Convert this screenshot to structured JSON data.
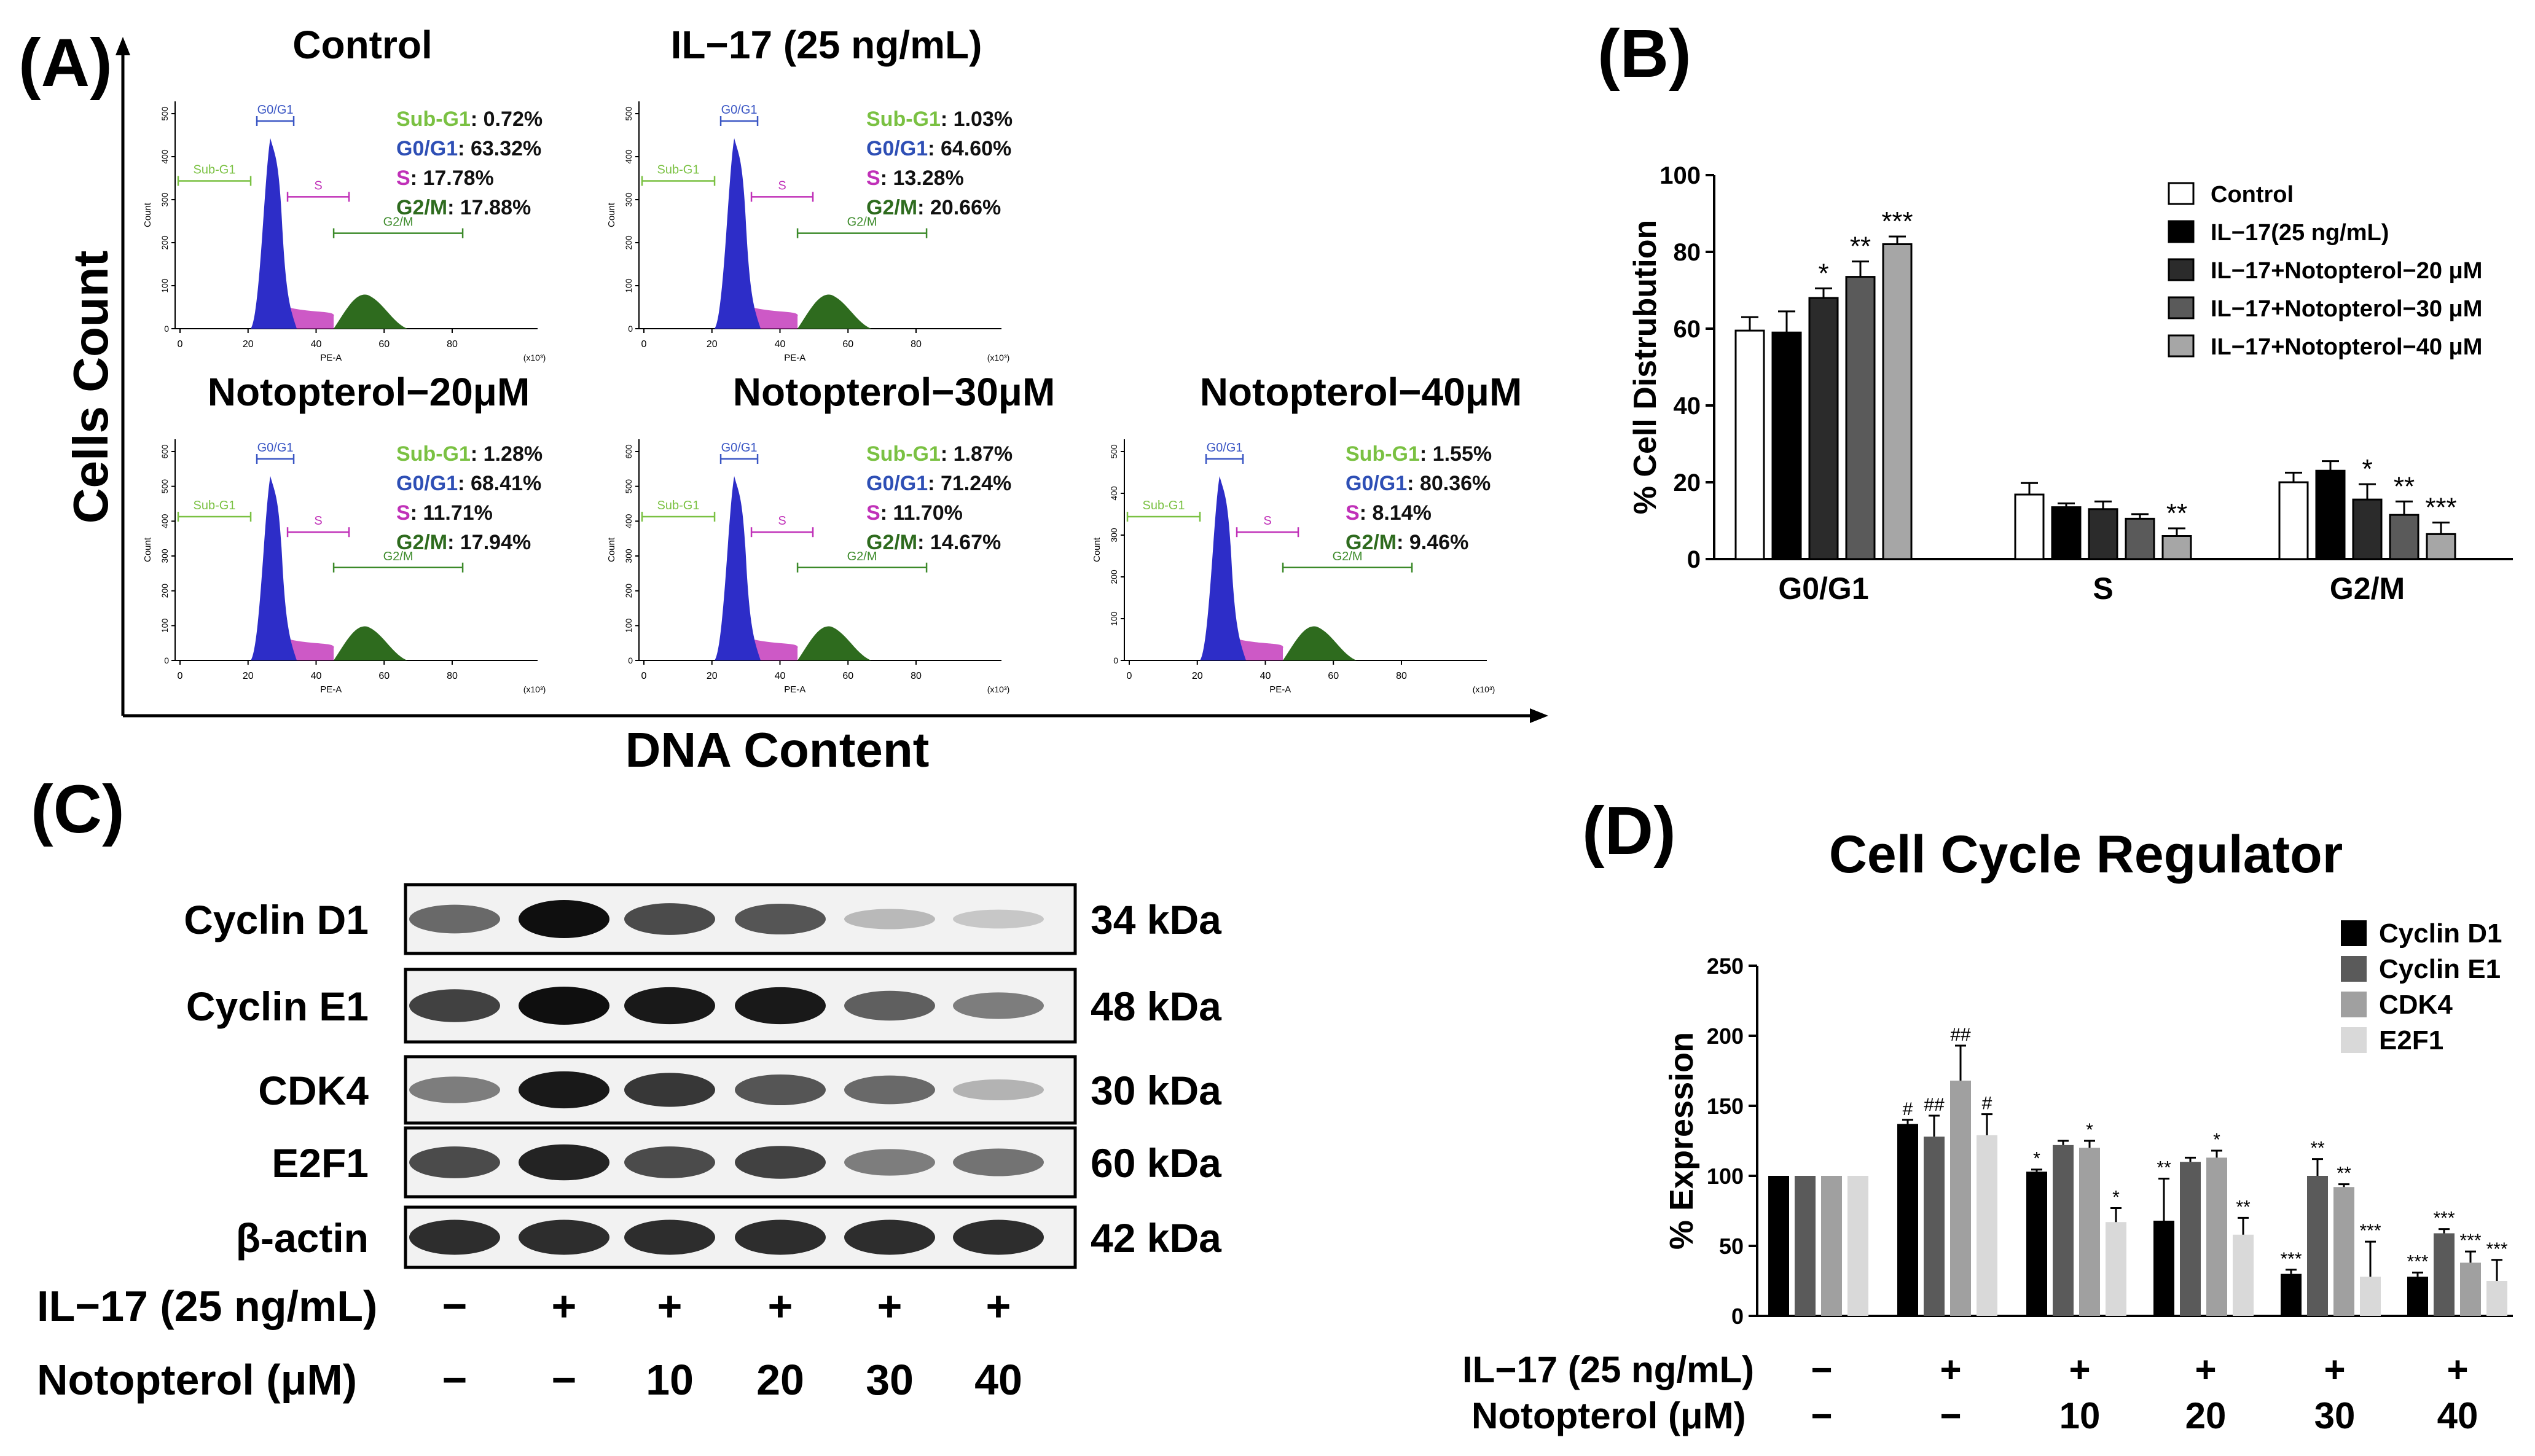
{
  "panels": {
    "A": "(A)",
    "B": "(B)",
    "C": "(C)",
    "D": "(D)"
  },
  "panel_a": {
    "y_axis_title": "Cells Count",
    "x_axis_title": "DNA Content",
    "hist_x_label": "PE-A",
    "hist_y_label": "Count",
    "x_multiplier": "(x10³)",
    "gate_labels": [
      "Sub-G1",
      "G0/G1",
      "S",
      "G2/M"
    ],
    "stat_labels": [
      "Sub-G1",
      "G0/G1",
      "S",
      "G2/M"
    ],
    "colors": {
      "sub_g1": "#7ac142",
      "g0g1": "#2e4fb5",
      "s": "#c030b8",
      "g2m": "#2e6b1e",
      "peak": "#2d2dc8"
    },
    "histograms": [
      {
        "title": "Control",
        "stats": [
          ": 0.72%",
          ": 63.32%",
          ": 17.78%",
          ": 17.88%"
        ],
        "y_ticks": [
          "0",
          "100",
          "200",
          "300",
          "400",
          "500"
        ],
        "x_ticks": [
          "0",
          "20",
          "40",
          "60",
          "80"
        ]
      },
      {
        "title": "IL−17 (25 ng/mL)",
        "stats": [
          ": 1.03%",
          ": 64.60%",
          ": 13.28%",
          ": 20.66%"
        ],
        "y_ticks": [
          "0",
          "100",
          "200",
          "300",
          "400",
          "500"
        ],
        "x_ticks": [
          "0",
          "20",
          "40",
          "60",
          "80"
        ]
      },
      {
        "title": "Notopterol−20μM",
        "stats": [
          ": 1.28%",
          ": 68.41%",
          ": 11.71%",
          ": 17.94%"
        ],
        "y_ticks": [
          "0",
          "100",
          "200",
          "300",
          "400",
          "500",
          "600"
        ],
        "x_ticks": [
          "0",
          "20",
          "40",
          "60",
          "80"
        ]
      },
      {
        "title": "Notopterol−30μM",
        "stats": [
          ": 1.87%",
          ": 71.24%",
          ": 11.70%",
          ": 14.67%"
        ],
        "y_ticks": [
          "0",
          "100",
          "200",
          "300",
          "400",
          "500",
          "600"
        ],
        "x_ticks": [
          "0",
          "20",
          "40",
          "60",
          "80"
        ]
      },
      {
        "title": "Notopterol−40μM",
        "stats": [
          ": 1.55%",
          ": 80.36%",
          ": 8.14%",
          ": 9.46%"
        ],
        "y_ticks": [
          "0",
          "100",
          "200",
          "300",
          "400",
          "500"
        ],
        "x_ticks": [
          "0",
          "20",
          "40",
          "60",
          "80"
        ]
      }
    ]
  },
  "panel_c": {
    "proteins": [
      {
        "name": "Cyclin D1",
        "size": "34 kDa",
        "intensity": [
          0.55,
          1.0,
          0.7,
          0.65,
          0.15,
          0.08
        ]
      },
      {
        "name": "Cyclin E1",
        "size": "48 kDa",
        "intensity": [
          0.75,
          1.0,
          0.95,
          0.95,
          0.6,
          0.45
        ]
      },
      {
        "name": "CDK4",
        "size": "30 kDa",
        "intensity": [
          0.45,
          0.95,
          0.8,
          0.65,
          0.55,
          0.18
        ]
      },
      {
        "name": "E2F1",
        "size": "60 kDa",
        "intensity": [
          0.7,
          0.9,
          0.7,
          0.75,
          0.45,
          0.5
        ]
      },
      {
        "name": "β-actin",
        "size": "42 kDa",
        "intensity": [
          0.85,
          0.85,
          0.85,
          0.85,
          0.85,
          0.85
        ]
      }
    ],
    "il17_label": "IL−17 (25 ng/mL)",
    "il17_values": [
      "−",
      "+",
      "+",
      "+",
      "+",
      "+"
    ],
    "notopterol_label": "Notopterol (μM)",
    "notopterol_values": [
      "−",
      "−",
      "10",
      "20",
      "30",
      "40"
    ]
  },
  "chart_data": [
    {
      "type": "bar",
      "panel": "B",
      "categories": [
        "G0/G1",
        "S",
        "G2/M"
      ],
      "ylabel": "% Cell Distrubution",
      "ylim": [
        0,
        100
      ],
      "yticks": [
        "0",
        "20",
        "40",
        "60",
        "80",
        "100"
      ],
      "legend_position": "top-right",
      "series": [
        {
          "name": "Control",
          "color": "#ffffff",
          "values": [
            59.5,
            16.8,
            20
          ],
          "errors": [
            3.5,
            3,
            2.5
          ],
          "stars": [
            "",
            "",
            ""
          ]
        },
        {
          "name": "IL−17(25 ng/mL)",
          "color": "#000000",
          "values": [
            59,
            13.5,
            23
          ],
          "errors": [
            5.5,
            1,
            2.5
          ],
          "stars": [
            "",
            "",
            ""
          ]
        },
        {
          "name": "IL−17+Notopterol−20 μM",
          "color": "#2b2b2b",
          "values": [
            68,
            13,
            15.5
          ],
          "errors": [
            2.5,
            2,
            4
          ],
          "stars": [
            "*",
            "",
            "*"
          ]
        },
        {
          "name": "IL−17+Notopterol−30 μM",
          "color": "#5a5a5a",
          "values": [
            73.5,
            10.5,
            11.5
          ],
          "errors": [
            4,
            1.2,
            3.5
          ],
          "stars": [
            "**",
            "",
            "**"
          ]
        },
        {
          "name": "IL−17+Notopterol−40 μM",
          "color": "#a6a6a6",
          "values": [
            82,
            6,
            6.5
          ],
          "errors": [
            2,
            2,
            3
          ],
          "stars": [
            "***",
            "**",
            "***"
          ]
        }
      ]
    },
    {
      "type": "bar",
      "panel": "D",
      "title": "Cell Cycle Regulator",
      "ylabel": "% Expression",
      "ylim": [
        0,
        250
      ],
      "yticks": [
        "0",
        "50",
        "100",
        "150",
        "200",
        "250"
      ],
      "legend_position": "top-right",
      "group_count": 6,
      "series": [
        {
          "name": "Cyclin D1",
          "color": "#000000",
          "values": [
            100,
            137,
            103,
            68,
            30,
            28
          ],
          "errors": [
            0,
            3,
            1.5,
            30,
            3,
            3
          ],
          "stars": [
            "",
            "#",
            "*",
            "**",
            "***",
            "***"
          ]
        },
        {
          "name": "Cyclin E1",
          "color": "#5a5a5a",
          "values": [
            100,
            128,
            122,
            110,
            100,
            59
          ],
          "errors": [
            0,
            15,
            3,
            3,
            12,
            3
          ],
          "stars": [
            "",
            "##",
            "",
            "",
            "**",
            "***"
          ]
        },
        {
          "name": "CDK4",
          "color": "#a0a0a0",
          "values": [
            100,
            168,
            120,
            113,
            92,
            38
          ],
          "errors": [
            0,
            25,
            5,
            5,
            2,
            8
          ],
          "stars": [
            "",
            "##",
            "*",
            "*",
            "**",
            "***"
          ]
        },
        {
          "name": "E2F1",
          "color": "#d9d9d9",
          "values": [
            100,
            129,
            67,
            58,
            28,
            25
          ],
          "errors": [
            0,
            15,
            10,
            12,
            25,
            15
          ],
          "stars": [
            "",
            "#",
            "*",
            "**",
            "***",
            "***"
          ]
        }
      ],
      "il17_label": "IL−17 (25 ng/mL)",
      "il17_values": [
        "−",
        "+",
        "+",
        "+",
        "+",
        "+"
      ],
      "notopterol_label": "Notopterol (μM)",
      "notopterol_values": [
        "−",
        "−",
        "10",
        "20",
        "30",
        "40"
      ]
    }
  ]
}
